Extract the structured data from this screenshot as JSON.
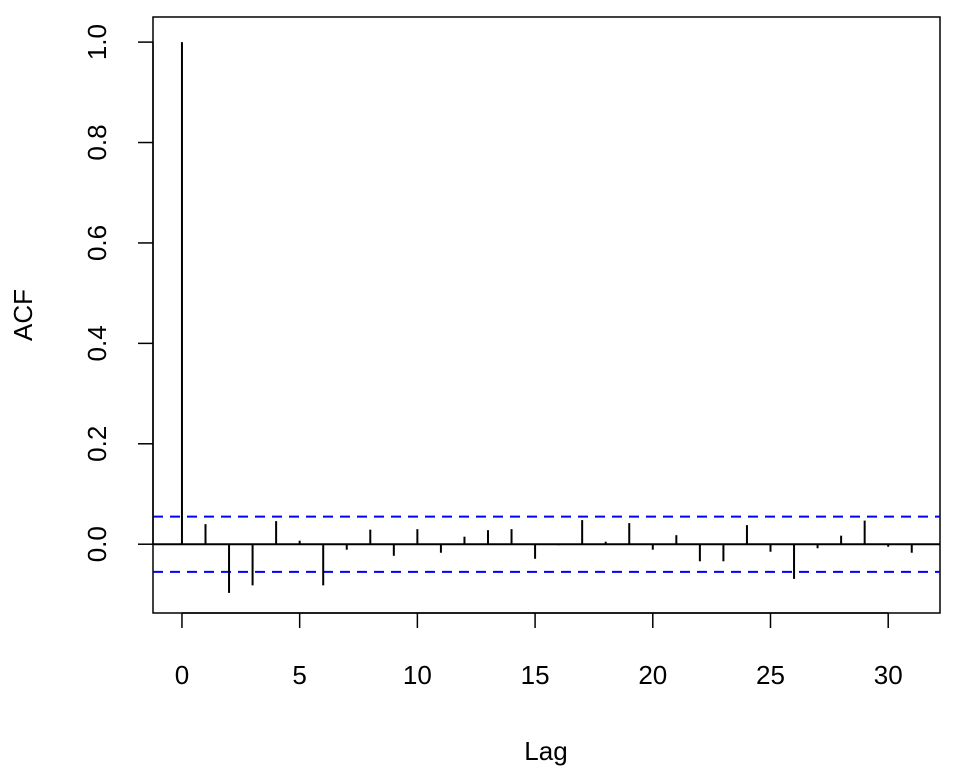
{
  "chart_data": {
    "type": "bar",
    "title": "",
    "xlabel": "Lag",
    "ylabel": "ACF",
    "x": [
      0,
      1,
      2,
      3,
      4,
      5,
      6,
      7,
      8,
      9,
      10,
      11,
      12,
      13,
      14,
      15,
      16,
      17,
      18,
      19,
      20,
      21,
      22,
      23,
      24,
      25,
      26,
      27,
      28,
      29,
      30,
      31
    ],
    "values": [
      1.0,
      0.04,
      -0.097,
      -0.082,
      0.046,
      0.007,
      -0.082,
      -0.011,
      0.029,
      -0.023,
      0.03,
      -0.017,
      0.015,
      0.028,
      0.03,
      -0.029,
      -0.002,
      0.048,
      0.005,
      0.042,
      -0.011,
      0.018,
      -0.034,
      -0.034,
      0.038,
      -0.015,
      -0.069,
      -0.008,
      0.017,
      0.047,
      -0.005,
      -0.017
    ],
    "confidence_bound": 0.055,
    "xlim": [
      -1.23,
      32.2
    ],
    "ylim": [
      -0.137,
      1.05
    ],
    "x_ticks": [
      "0",
      "5",
      "10",
      "15",
      "20",
      "25",
      "30"
    ],
    "y_ticks": [
      "0.0",
      "0.2",
      "0.4",
      "0.6",
      "0.8",
      "1.0"
    ],
    "grid": false,
    "colors": {
      "bars": "#000000",
      "confidence_lines": "#0000ff"
    }
  }
}
